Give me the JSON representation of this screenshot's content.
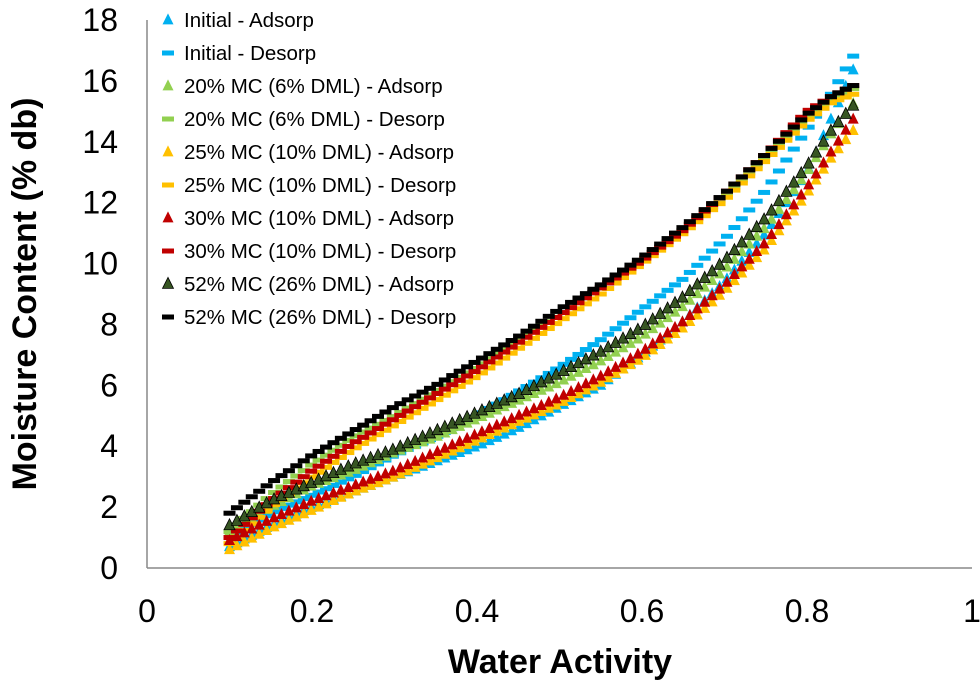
{
  "chart_data": {
    "type": "scatter",
    "title": "",
    "xlabel": "Water Activity",
    "ylabel": "Moisture Content (% db)",
    "xlim": [
      0,
      1
    ],
    "ylim": [
      0,
      18
    ],
    "xticks": [
      0,
      0.2,
      0.4,
      0.6,
      0.8,
      1
    ],
    "xtick_labels": [
      "0",
      "0.2",
      "0.4",
      "0.6",
      "0.8",
      "1"
    ],
    "yticks": [
      0,
      2,
      4,
      6,
      8,
      10,
      12,
      14,
      16,
      18
    ],
    "ytick_labels": [
      "0",
      "2",
      "4",
      "6",
      "8",
      "10",
      "12",
      "14",
      "16",
      "18"
    ],
    "grid": false,
    "legend_position": "top-left",
    "series": [
      {
        "name": "Initial - Adsorp",
        "marker": "triangle",
        "color": "#00B0F0",
        "x": [
          0.1,
          0.15,
          0.2,
          0.25,
          0.3,
          0.35,
          0.4,
          0.45,
          0.5,
          0.55,
          0.6,
          0.65,
          0.7,
          0.75,
          0.8,
          0.83,
          0.86
        ],
        "y": [
          0.7,
          1.4,
          2.0,
          2.5,
          3.0,
          3.5,
          4.0,
          4.6,
          5.3,
          6.0,
          7.0,
          8.1,
          9.4,
          11.0,
          13.0,
          14.8,
          16.6
        ]
      },
      {
        "name": "Initial - Desorp",
        "marker": "dash",
        "color": "#00B0F0",
        "x": [
          0.1,
          0.15,
          0.2,
          0.25,
          0.3,
          0.35,
          0.4,
          0.45,
          0.5,
          0.55,
          0.6,
          0.65,
          0.7,
          0.75,
          0.8,
          0.83,
          0.86
        ],
        "y": [
          1.0,
          1.8,
          2.4,
          3.0,
          3.7,
          4.3,
          5.0,
          5.8,
          6.6,
          7.5,
          8.5,
          9.5,
          10.8,
          12.4,
          14.4,
          15.6,
          17.0
        ]
      },
      {
        "name": "20% MC (6% DML) - Adsorp",
        "marker": "triangle",
        "color": "#92D050",
        "x": [
          0.1,
          0.15,
          0.2,
          0.25,
          0.3,
          0.35,
          0.4,
          0.45,
          0.5,
          0.55,
          0.6,
          0.65,
          0.7,
          0.75,
          0.8,
          0.83,
          0.86
        ],
        "y": [
          1.2,
          2.0,
          2.7,
          3.2,
          3.8,
          4.3,
          4.9,
          5.5,
          6.1,
          6.8,
          7.6,
          8.6,
          9.8,
          11.2,
          13.0,
          14.3,
          15.4
        ]
      },
      {
        "name": "20% MC (6% DML) - Desorp",
        "marker": "dash",
        "color": "#92D050",
        "x": [
          0.1,
          0.15,
          0.2,
          0.25,
          0.3,
          0.35,
          0.4,
          0.45,
          0.5,
          0.55,
          0.6,
          0.65,
          0.7,
          0.75,
          0.8,
          0.83,
          0.86
        ],
        "y": [
          1.2,
          2.4,
          3.4,
          4.3,
          5.0,
          5.8,
          6.6,
          7.5,
          8.3,
          9.2,
          10.1,
          11.1,
          12.2,
          13.5,
          14.8,
          15.4,
          15.8
        ]
      },
      {
        "name": "25% MC (10% DML) - Adsorp",
        "marker": "triangle",
        "color": "#FFC000",
        "x": [
          0.1,
          0.15,
          0.2,
          0.25,
          0.3,
          0.35,
          0.4,
          0.45,
          0.5,
          0.55,
          0.6,
          0.65,
          0.7,
          0.75,
          0.8,
          0.83,
          0.86
        ],
        "y": [
          0.6,
          1.3,
          1.9,
          2.5,
          3.0,
          3.6,
          4.2,
          4.8,
          5.4,
          6.1,
          6.9,
          7.9,
          9.1,
          10.5,
          12.3,
          13.5,
          14.5
        ]
      },
      {
        "name": "25% MC (10% DML) - Desorp",
        "marker": "dash",
        "color": "#FFC000",
        "x": [
          0.1,
          0.15,
          0.2,
          0.25,
          0.3,
          0.35,
          0.4,
          0.45,
          0.5,
          0.55,
          0.6,
          0.65,
          0.7,
          0.75,
          0.8,
          0.83,
          0.86
        ],
        "y": [
          0.8,
          2.0,
          3.0,
          3.9,
          4.7,
          5.5,
          6.3,
          7.2,
          8.1,
          9.0,
          10.0,
          11.0,
          12.1,
          13.4,
          14.7,
          15.3,
          15.6
        ]
      },
      {
        "name": "30% MC (10% DML) - Adsorp",
        "marker": "triangle",
        "color": "#C00000",
        "x": [
          0.1,
          0.15,
          0.2,
          0.25,
          0.3,
          0.35,
          0.4,
          0.45,
          0.5,
          0.55,
          0.6,
          0.65,
          0.7,
          0.75,
          0.8,
          0.83,
          0.86
        ],
        "y": [
          0.9,
          1.6,
          2.2,
          2.7,
          3.2,
          3.8,
          4.4,
          5.0,
          5.6,
          6.3,
          7.1,
          8.1,
          9.3,
          10.7,
          12.5,
          13.7,
          14.9
        ]
      },
      {
        "name": "30% MC (10% DML) - Desorp",
        "marker": "dash",
        "color": "#C00000",
        "x": [
          0.1,
          0.15,
          0.2,
          0.25,
          0.3,
          0.35,
          0.4,
          0.45,
          0.5,
          0.55,
          0.6,
          0.65,
          0.7,
          0.75,
          0.8,
          0.83,
          0.86
        ],
        "y": [
          1.0,
          2.2,
          3.2,
          4.1,
          4.9,
          5.7,
          6.5,
          7.4,
          8.3,
          9.2,
          10.1,
          11.1,
          12.3,
          13.6,
          15.0,
          15.5,
          15.9
        ]
      },
      {
        "name": "52% MC (26% DML) - Adsorp",
        "marker": "triangle",
        "color": "#375623",
        "x": [
          0.1,
          0.15,
          0.2,
          0.25,
          0.3,
          0.35,
          0.4,
          0.45,
          0.5,
          0.55,
          0.6,
          0.65,
          0.7,
          0.75,
          0.8,
          0.83,
          0.86
        ],
        "y": [
          1.4,
          2.2,
          2.8,
          3.4,
          3.9,
          4.5,
          5.1,
          5.7,
          6.4,
          7.1,
          7.9,
          8.9,
          10.1,
          11.5,
          13.2,
          14.4,
          15.3
        ]
      },
      {
        "name": "52% MC (26% DML) - Desorp",
        "marker": "dash",
        "color": "#000000",
        "x": [
          0.1,
          0.15,
          0.2,
          0.25,
          0.3,
          0.35,
          0.4,
          0.45,
          0.5,
          0.55,
          0.6,
          0.65,
          0.7,
          0.75,
          0.8,
          0.83,
          0.86
        ],
        "y": [
          1.8,
          2.8,
          3.7,
          4.5,
          5.3,
          6.0,
          6.8,
          7.6,
          8.5,
          9.3,
          10.2,
          11.2,
          12.3,
          13.6,
          14.9,
          15.5,
          15.9
        ]
      }
    ]
  }
}
